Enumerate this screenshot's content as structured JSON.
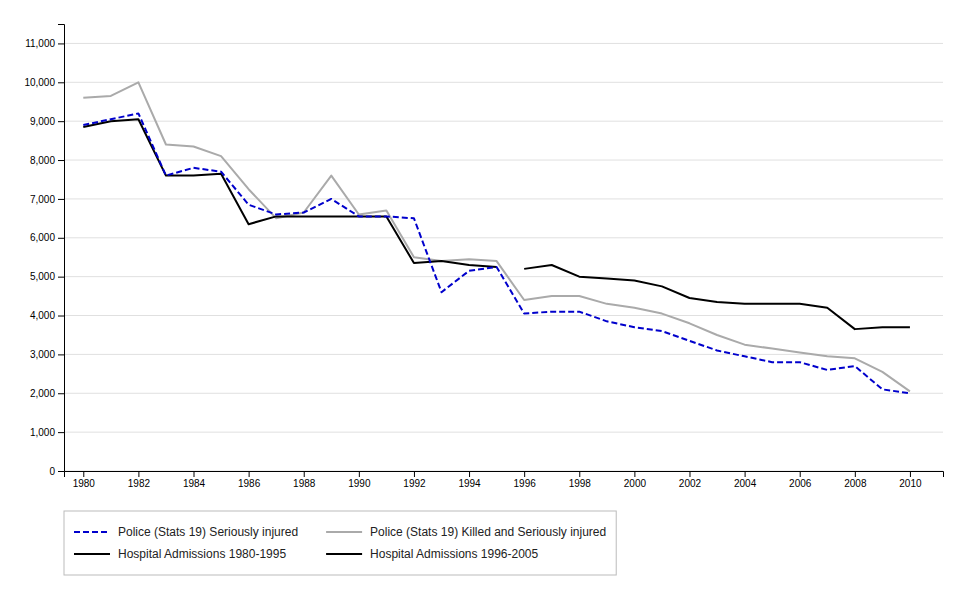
{
  "chart_data": {
    "type": "line",
    "x": [
      1980,
      1981,
      1982,
      1983,
      1984,
      1985,
      1986,
      1987,
      1988,
      1989,
      1990,
      1991,
      1992,
      1993,
      1994,
      1995,
      1996,
      1997,
      1998,
      1999,
      2000,
      2001,
      2002,
      2003,
      2004,
      2005,
      2006,
      2007,
      2008,
      2009,
      2010
    ],
    "series": [
      {
        "name": "Police (Stats 19) Seriously injured",
        "color": "#0000cc",
        "line_style": "dashed",
        "values": [
          8900,
          9050,
          9200,
          7600,
          7800,
          7700,
          6850,
          6600,
          6650,
          7000,
          6550,
          6550,
          6500,
          4600,
          5150,
          5250,
          4050,
          4100,
          4100,
          3850,
          3700,
          3600,
          3350,
          3100,
          2950,
          2800,
          2800,
          2600,
          2700,
          2100,
          2000
        ]
      },
      {
        "name": "Police (Stats 19) Killed and Seriously injured",
        "color": "#aaaaaa",
        "line_style": "solid",
        "values": [
          9600,
          9650,
          10000,
          8400,
          8350,
          8100,
          7250,
          6500,
          6650,
          7600,
          6600,
          6700,
          5500,
          5400,
          5450,
          5400,
          4400,
          4500,
          4500,
          4300,
          4200,
          4050,
          3800,
          3500,
          3250,
          3150,
          3050,
          2950,
          2900,
          2550,
          2050
        ]
      },
      {
        "name": "Hospital Admissions 1980-1995",
        "color": "#000000",
        "line_style": "solid",
        "values": [
          8850,
          9000,
          9050,
          7600,
          7600,
          7650,
          6350,
          6550,
          6550,
          6550,
          6550,
          6550,
          5350,
          5400,
          5300,
          5250,
          null,
          null,
          null,
          null,
          null,
          null,
          null,
          null,
          null,
          null,
          null,
          null,
          null,
          null,
          null
        ]
      },
      {
        "name": "Hospital Admissions 1996-2005",
        "color": "#000000",
        "line_style": "solid",
        "values": [
          null,
          null,
          null,
          null,
          null,
          null,
          null,
          null,
          null,
          null,
          null,
          null,
          null,
          null,
          null,
          null,
          5200,
          5300,
          5000,
          4950,
          4900,
          4750,
          4450,
          4350,
          4300,
          4300,
          4300,
          4200,
          3650,
          3700,
          3700
        ]
      }
    ],
    "xlim": [
      1979.3,
      2011.2
    ],
    "xticks": [
      1980,
      1982,
      1984,
      1986,
      1988,
      1990,
      1992,
      1994,
      1996,
      1998,
      2000,
      2002,
      2004,
      2006,
      2008,
      2010
    ],
    "ylim": [
      0,
      11500
    ],
    "yticks": [
      0,
      {
        "value": 1000,
        "label": "1,000"
      },
      {
        "value": 2000,
        "label": "2,000"
      },
      {
        "value": 3000,
        "label": "3,000"
      },
      {
        "value": 4000,
        "label": "4,000"
      },
      {
        "value": 5000,
        "label": "5,000"
      },
      {
        "value": 6000,
        "label": "6,000"
      },
      {
        "value": 7000,
        "label": "7,000"
      },
      {
        "value": 8000,
        "label": "8,000"
      },
      {
        "value": 9000,
        "label": "9,000"
      },
      {
        "value": 10000,
        "label": "10,000"
      },
      {
        "value": 11000,
        "label": "11,000"
      }
    ],
    "grid": true,
    "legend": "bottom"
  }
}
